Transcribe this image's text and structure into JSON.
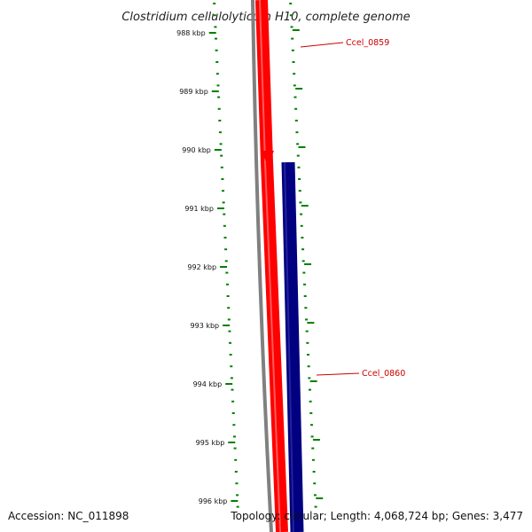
{
  "title": "Clostridium cellulolyticum H10, complete genome",
  "accession": "Accession: NC_011898",
  "summary": "Topology: circular; Length: 4,068,724 bp; Genes: 3,477",
  "colors": {
    "forward_gene": "#ff0000",
    "reverse_gene": "#000080",
    "backbone": "#808080",
    "ticks": "#008000",
    "label": "#cc0000"
  },
  "scale": {
    "unit": "kbp",
    "tick_labels": [
      "988 kbp",
      "989 kbp",
      "990 kbp",
      "991 kbp",
      "992 kbp",
      "993 kbp",
      "994 kbp",
      "995 kbp",
      "996 kbp"
    ]
  },
  "genes": [
    {
      "label": "Ccel_0859",
      "strand": "forward"
    },
    {
      "label": "Ccel_0860",
      "strand": "reverse"
    }
  ]
}
